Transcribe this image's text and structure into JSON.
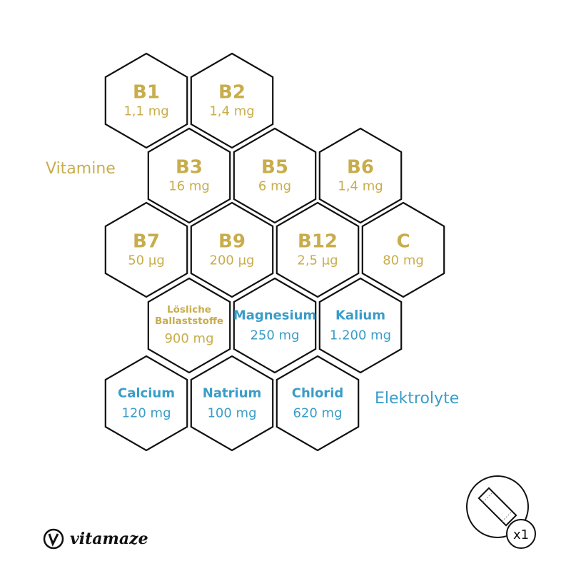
{
  "colors": {
    "vitamin": "#c8ad4c",
    "electrolyte": "#3a9dc8",
    "outline": "#111111"
  },
  "groups": {
    "vitamins_label": "Vitamine",
    "electrolytes_label": "Elektrolyte"
  },
  "cells": [
    {
      "name": "B1",
      "amount": "1,1 mg",
      "group": "vitamin"
    },
    {
      "name": "B2",
      "amount": "1,4 mg",
      "group": "vitamin"
    },
    {
      "name": "B3",
      "amount": "16 mg",
      "group": "vitamin"
    },
    {
      "name": "B5",
      "amount": "6 mg",
      "group": "vitamin"
    },
    {
      "name": "B6",
      "amount": "1,4 mg",
      "group": "vitamin"
    },
    {
      "name": "B7",
      "amount": "50 µg",
      "group": "vitamin"
    },
    {
      "name": "B9",
      "amount": "200 µg",
      "group": "vitamin"
    },
    {
      "name": "B12",
      "amount": "2,5 µg",
      "group": "vitamin"
    },
    {
      "name": "C",
      "amount": "80 mg",
      "group": "vitamin"
    },
    {
      "name": "Lösliche Ballaststoffe",
      "amount": "900 mg",
      "group": "vitamin"
    },
    {
      "name": "Magnesium",
      "amount": "250 mg",
      "group": "electrolyte"
    },
    {
      "name": "Kalium",
      "amount": "1.200 mg",
      "group": "electrolyte"
    },
    {
      "name": "Calcium",
      "amount": "120 mg",
      "group": "electrolyte"
    },
    {
      "name": "Natrium",
      "amount": "100 mg",
      "group": "electrolyte"
    },
    {
      "name": "Chlorid",
      "amount": "620 mg",
      "group": "electrolyte"
    }
  ],
  "brand": {
    "name": "vitamaze"
  },
  "serving_badge": {
    "icon": "stick-pack-icon",
    "count": "x1"
  }
}
